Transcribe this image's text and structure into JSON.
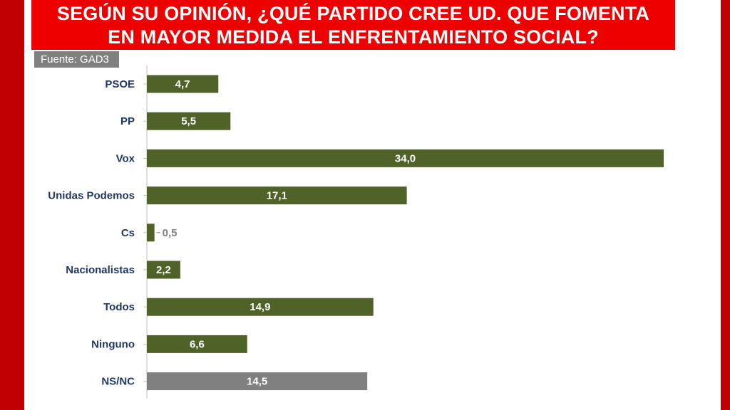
{
  "header": {
    "title_line1": "SEGÚN SU OPINIÓN, ¿QUÉ PARTIDO CREE UD. QUE FOMENTA",
    "title_line2": "EN MAYOR MEDIDA EL ENFRENTAMIENTO SOCIAL?",
    "source": "Fuente: GAD3"
  },
  "colors": {
    "bar": "#4f6228",
    "bar_nsnc": "#808080",
    "label_inside": "#ffffff",
    "label_outside": "#808080",
    "category_text": "#1f3864",
    "frame": "#c00000",
    "title_bg": "#ee0000"
  },
  "chart_data": {
    "type": "bar",
    "orientation": "horizontal",
    "categories": [
      "PSOE",
      "PP",
      "Vox",
      "Unidas Podemos",
      "Cs",
      "Nacionalistas",
      "Todos",
      "Ninguno",
      "NS/NC"
    ],
    "values": [
      4.7,
      5.5,
      34.0,
      17.1,
      0.5,
      2.2,
      14.9,
      6.6,
      14.5
    ],
    "value_labels": [
      "4,7",
      "5,5",
      "34,0",
      "17,1",
      "0,5",
      "2,2",
      "14,9",
      "6,6",
      "14,5"
    ],
    "title": "SEGÚN SU OPINIÓN, ¿QUÉ PARTIDO CREE UD. QUE FOMENTA EN MAYOR MEDIDA EL ENFRENTAMIENTO SOCIAL?",
    "xlim": [
      0,
      34
    ],
    "grid": false,
    "legend": "none"
  }
}
